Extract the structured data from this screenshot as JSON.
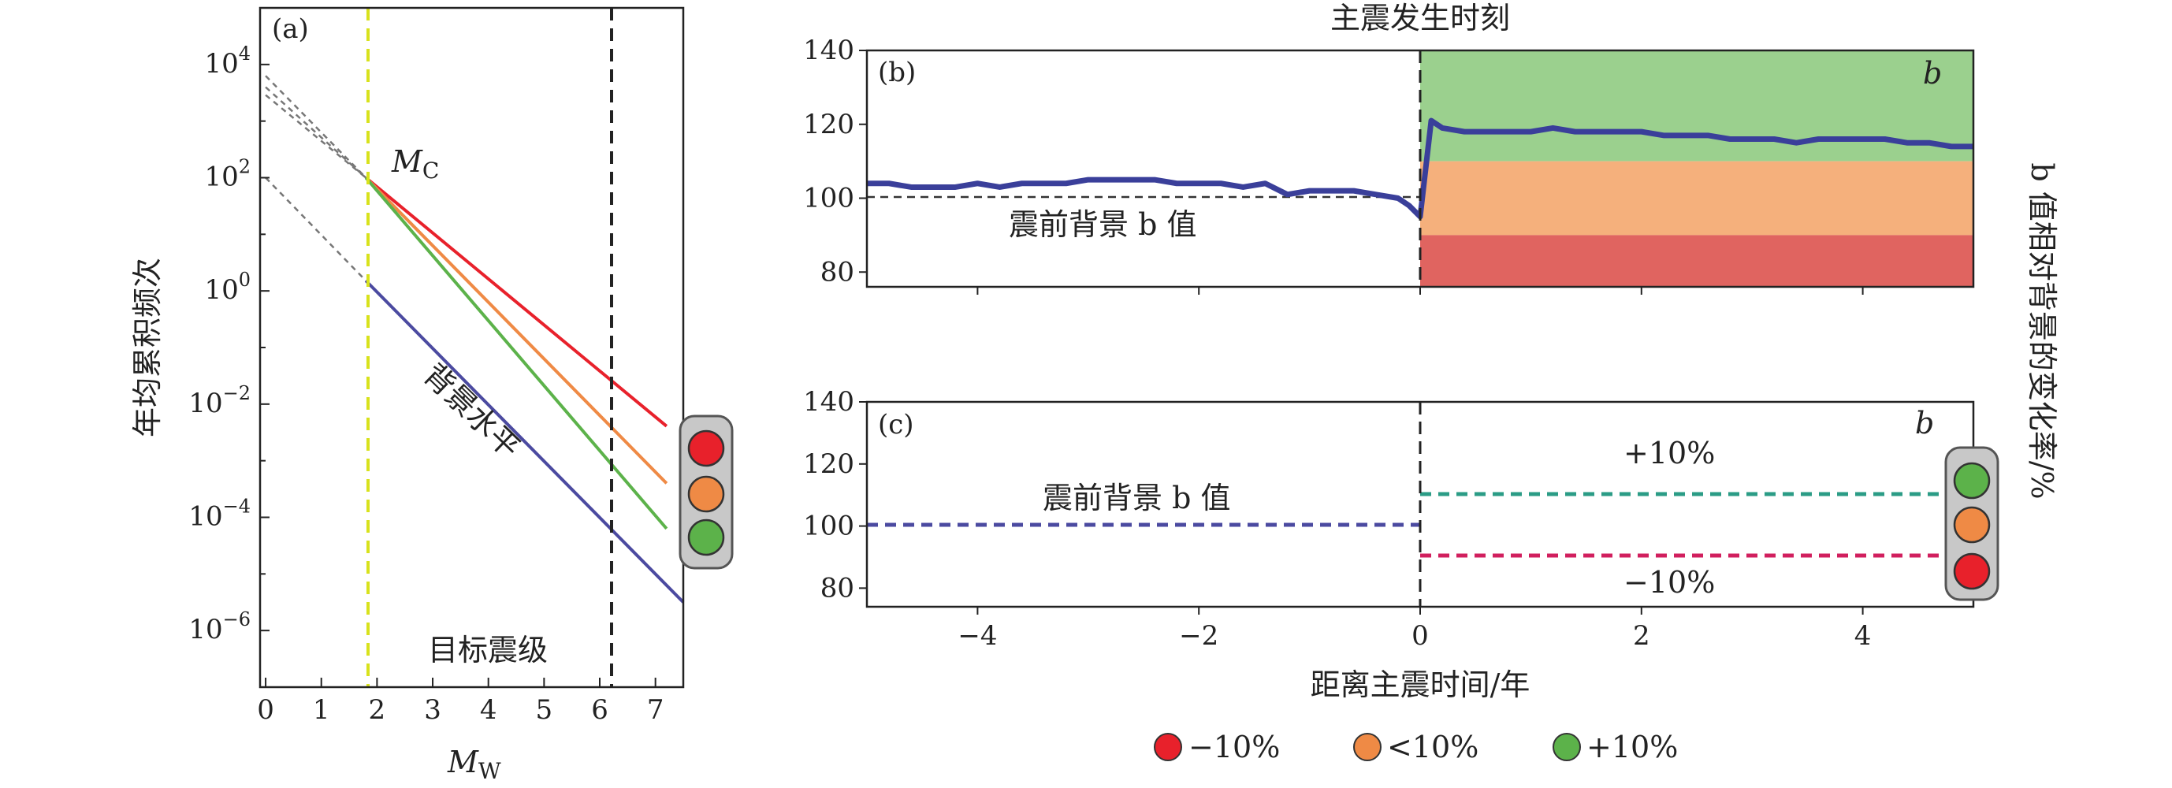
{
  "top_title": "主震发生时刻",
  "right_ylabel": "b 值相对背景的变化率/%",
  "legend": [
    {
      "label": "−10%",
      "color": "#e8212b",
      "text_color": "#d11f5e"
    },
    {
      "label": "<10%",
      "color": "#ef8a45",
      "text_color": "#f0a050"
    },
    {
      "label": "+10%",
      "color": "#5cb24a",
      "text_color": "#2b9c86"
    }
  ],
  "chart_data": [
    {
      "id": "a",
      "panel_label": "(a)",
      "type": "line",
      "xlabel_main": "M",
      "xlabel_sub": "W",
      "ylabel": "年均累积频次",
      "log_y": true,
      "xlim": [
        -0.1,
        7.5
      ],
      "ylim_log10": [
        -7,
        5
      ],
      "xticks": [
        "0",
        "1",
        "2",
        "3",
        "4",
        "5",
        "6",
        "7"
      ],
      "yticks_exp": [
        "4",
        "2",
        "0",
        "−2",
        "−4",
        "−6"
      ],
      "ytick_base": "10",
      "mc": 1.8,
      "mc_label_main": "M",
      "mc_label_sub": "C",
      "target_mag": 6.0,
      "target_label": "目标震级",
      "background_label": "背景水平",
      "series": [
        {
          "x": [
            1.8,
            7.2
          ],
          "log10y": [
            2.0,
            -2.39
          ],
          "color": "#e8212b"
        },
        {
          "x": [
            1.8,
            7.2
          ],
          "log10y": [
            2.0,
            -3.4
          ],
          "color": "#ef8a45"
        },
        {
          "x": [
            1.8,
            7.2
          ],
          "log10y": [
            2.0,
            -4.2
          ],
          "color": "#5cb24a"
        },
        {
          "x": [
            1.8,
            7.5
          ],
          "log10y": [
            0.18,
            -5.5
          ],
          "color": "#4b4aa0"
        }
      ],
      "extrapolations": [
        {
          "x": [
            0,
            1.8
          ],
          "log10y": [
            3.46,
            2.0
          ],
          "color": "#e8212b"
        },
        {
          "x": [
            0,
            1.8
          ],
          "log10y": [
            3.6,
            2.0
          ],
          "color": "#ef8a45"
        },
        {
          "x": [
            0,
            1.8
          ],
          "log10y": [
            3.8,
            2.0
          ],
          "color": "#5cb24a"
        },
        {
          "x": [
            0,
            1.8
          ],
          "log10y": [
            2.0,
            0.18
          ],
          "color": "#4b4aa0"
        }
      ]
    },
    {
      "id": "b",
      "panel_label": "(b)",
      "type": "line",
      "ylim": [
        76,
        140
      ],
      "xlim": [
        -5,
        5
      ],
      "yticks": [
        "80",
        "100",
        "120",
        "140"
      ],
      "corner_label": "b",
      "baseline": 100,
      "baseline_label": "震前背景 b 值",
      "zones": [
        {
          "from": 110,
          "to": 140,
          "color": "#9bd08e"
        },
        {
          "from": 90,
          "to": 110,
          "color": "#f5b07c"
        },
        {
          "from": 76,
          "to": 90,
          "color": "#e06460"
        }
      ],
      "series_x": [
        -5,
        -4.8,
        -4.6,
        -4.4,
        -4.2,
        -4.0,
        -3.8,
        -3.6,
        -3.4,
        -3.2,
        -3.0,
        -2.8,
        -2.6,
        -2.4,
        -2.2,
        -2.0,
        -1.8,
        -1.6,
        -1.4,
        -1.2,
        -1.0,
        -0.8,
        -0.6,
        -0.4,
        -0.2,
        -0.1,
        0,
        0.1,
        0.2,
        0.4,
        0.6,
        0.8,
        1.0,
        1.2,
        1.4,
        1.6,
        1.8,
        2.0,
        2.2,
        2.4,
        2.6,
        2.8,
        3.0,
        3.2,
        3.4,
        3.6,
        3.8,
        4.0,
        4.2,
        4.4,
        4.6,
        4.8,
        5.0
      ],
      "series_y": [
        104,
        104,
        103,
        103,
        103,
        104,
        103,
        104,
        104,
        104,
        105,
        105,
        105,
        105,
        104,
        104,
        104,
        103,
        104,
        101,
        102,
        102,
        102,
        101,
        100,
        98,
        95,
        121,
        119,
        118,
        118,
        118,
        118,
        119,
        118,
        118,
        118,
        118,
        117,
        117,
        117,
        116,
        116,
        116,
        115,
        116,
        116,
        116,
        116,
        115,
        115,
        114,
        114
      ],
      "series_color": "#3a3f9a"
    },
    {
      "id": "c",
      "panel_label": "(c)",
      "type": "line",
      "ylim": [
        74,
        140
      ],
      "xlim": [
        -5,
        5
      ],
      "yticks": [
        "80",
        "100",
        "120",
        "140"
      ],
      "xticks": [
        "−4",
        "−2",
        "0",
        "2",
        "4"
      ],
      "xlabel": "距离主震时间/年",
      "corner_label": "b",
      "baseline_label": "震前背景 b 值",
      "plus_label": "+10%",
      "minus_label": "−10%",
      "before": {
        "x": [
          -5,
          0
        ],
        "y": 100,
        "color": "#4b4aa0"
      },
      "plus": {
        "x": [
          0,
          5
        ],
        "y": 110,
        "color": "#2b9c86"
      },
      "minus": {
        "x": [
          0,
          5
        ],
        "y": 90,
        "color": "#d11f5e"
      }
    }
  ]
}
